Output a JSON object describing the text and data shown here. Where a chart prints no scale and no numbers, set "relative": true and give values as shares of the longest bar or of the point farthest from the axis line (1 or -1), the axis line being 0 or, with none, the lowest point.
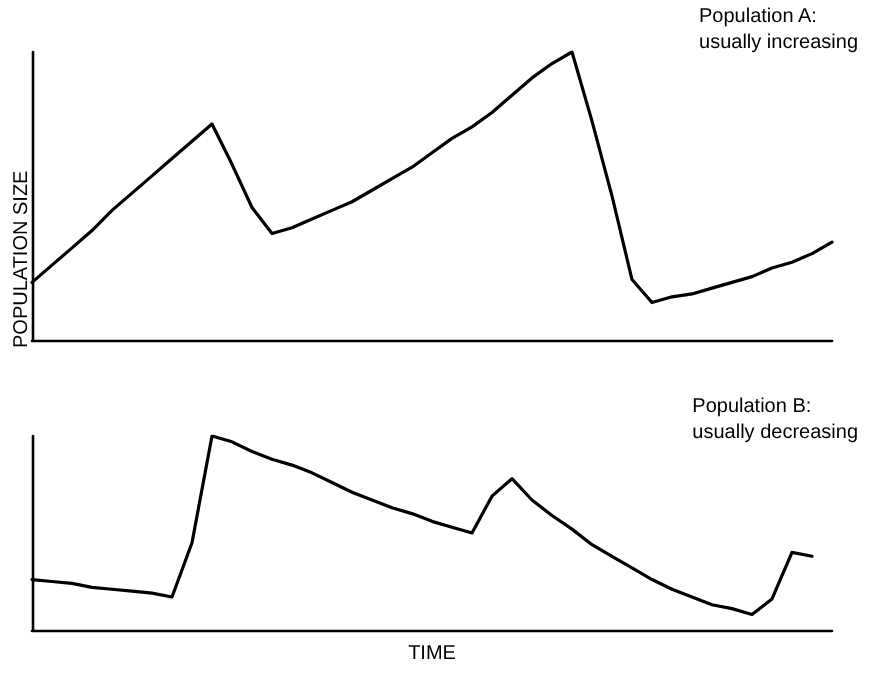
{
  "chart_data": [
    {
      "type": "line",
      "relative": true,
      "ylabel": "POPULATION SIZE",
      "marker": "none",
      "line_style": "solid",
      "grid": false,
      "tick_labels": false,
      "annotations": [
        "Population A:\nusually increasing"
      ],
      "categories": [
        null,
        null,
        null,
        null,
        null,
        null,
        null,
        null,
        null,
        null,
        null,
        null,
        null,
        null,
        null,
        null,
        null,
        null,
        null,
        null,
        null,
        null,
        null,
        null,
        null,
        null,
        null,
        null,
        null,
        null,
        null,
        null,
        null,
        null,
        null,
        null,
        null,
        null,
        null,
        null,
        null
      ],
      "series": [
        {
          "color": "#000000",
          "values": [
            0.2,
            0.26,
            0.32,
            0.38,
            0.45,
            0.51,
            0.57,
            0.63,
            0.69,
            0.75,
            0.61,
            0.46,
            0.37,
            0.39,
            0.42,
            0.45,
            0.48,
            0.52,
            0.56,
            0.6,
            0.65,
            0.7,
            0.74,
            0.79,
            0.85,
            0.91,
            0.96,
            1,
            0.76,
            0.5,
            0.21,
            0.13,
            0.15,
            0.16,
            0.18,
            0.2,
            0.22,
            0.25,
            0.27,
            0.3,
            0.34
          ]
        }
      ]
    },
    {
      "type": "line",
      "relative": true,
      "xlabel": "TIME",
      "marker": "none",
      "line_style": "solid",
      "grid": false,
      "tick_labels": false,
      "annotations": [
        "Population B:\nusually decreasing"
      ],
      "categories": [
        null,
        null,
        null,
        null,
        null,
        null,
        null,
        null,
        null,
        null,
        null,
        null,
        null,
        null,
        null,
        null,
        null,
        null,
        null,
        null,
        null,
        null,
        null,
        null,
        null,
        null,
        null,
        null,
        null,
        null,
        null,
        null,
        null,
        null,
        null,
        null,
        null,
        null,
        null,
        null,
        null
      ],
      "series": [
        {
          "color": "#000000",
          "values": [
            0.26,
            0.25,
            0.24,
            0.22,
            0.21,
            0.2,
            0.19,
            0.17,
            0.45,
            1,
            0.97,
            0.92,
            0.88,
            0.85,
            0.81,
            0.76,
            0.71,
            0.67,
            0.63,
            0.6,
            0.56,
            0.53,
            0.5,
            0.69,
            0.78,
            0.67,
            0.59,
            0.52,
            0.44,
            0.38,
            0.32,
            0.26,
            0.21,
            0.17,
            0.13,
            0.11,
            0.08,
            0.16,
            0.4,
            0.38,
            null
          ]
        }
      ]
    }
  ]
}
